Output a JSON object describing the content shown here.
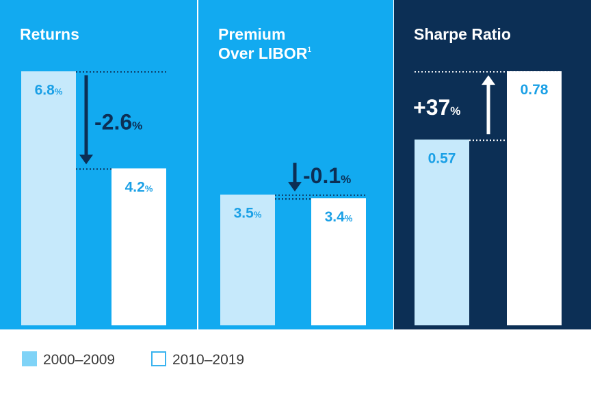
{
  "colors": {
    "panel_light": "#12aaf0",
    "panel_dark": "#0c2f55",
    "bar_old": "#c6e9fb",
    "bar_new": "#ffffff",
    "value_text": "#1aa0e6",
    "arrow_dark": "#0c2f55",
    "arrow_light": "#ffffff",
    "legend_old": "#7fd3f7",
    "legend_text": "#3a3a3a"
  },
  "chart_data": [
    {
      "type": "bar",
      "title": "Returns",
      "title_sup": "",
      "categories": [
        "2000–2009",
        "2010–2019"
      ],
      "values": [
        6.8,
        4.2
      ],
      "value_labels": [
        {
          "num": "6.8",
          "unit": "%"
        },
        {
          "num": "4.2",
          "unit": "%"
        }
      ],
      "change": {
        "num": "-2.6",
        "unit": "%",
        "direction": "down"
      },
      "ylim": [
        0,
        7.5
      ]
    },
    {
      "type": "bar",
      "title": "Premium\nOver LIBOR",
      "title_sup": "1",
      "categories": [
        "2000–2009",
        "2010–2019"
      ],
      "values": [
        3.5,
        3.4
      ],
      "value_labels": [
        {
          "num": "3.5",
          "unit": "%"
        },
        {
          "num": "3.4",
          "unit": "%"
        }
      ],
      "change": {
        "num": "-0.1",
        "unit": "%",
        "direction": "down"
      },
      "ylim": [
        0,
        7.5
      ]
    },
    {
      "type": "bar",
      "title": "Sharpe Ratio",
      "title_sup": "",
      "categories": [
        "2000–2009",
        "2010–2019"
      ],
      "values": [
        0.57,
        0.78
      ],
      "value_labels": [
        {
          "num": "0.57",
          "unit": ""
        },
        {
          "num": "0.78",
          "unit": ""
        }
      ],
      "change": {
        "num": "+37",
        "unit": "%",
        "direction": "up"
      },
      "ylim": [
        0,
        0.86
      ]
    }
  ],
  "legend": [
    {
      "label": "2000–2009",
      "color": "#7fd3f7"
    },
    {
      "label": "2010–2019",
      "color": "#ffffff"
    }
  ]
}
